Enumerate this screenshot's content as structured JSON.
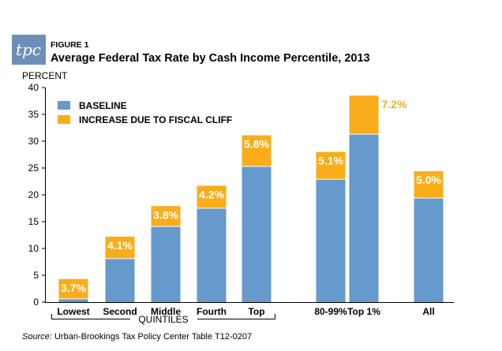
{
  "logo_text": "tpc",
  "figure_label": "FIGURE 1",
  "title": "Average Federal Tax Rate by Cash Income Percentile, 2013",
  "source_prefix": "Source:",
  "source_text": " Urban-Brookings Tax Policy Center Table T12-0207",
  "colors": {
    "baseline": "#6699CC",
    "increase": "#F9AD1B",
    "logo_bg": "#6B8FB8",
    "axis": "#000000"
  },
  "chart_data": {
    "type": "bar",
    "stacked": true,
    "ylabel": "PERCENT",
    "ylim": [
      0,
      40
    ],
    "yticks": [
      0,
      5,
      10,
      15,
      20,
      25,
      30,
      35,
      40
    ],
    "group_label": "QUINTILES",
    "categories": [
      "Lowest",
      "Second",
      "Middle",
      "Fourth",
      "Top",
      "80-99%",
      "Top 1%",
      "All"
    ],
    "series": [
      {
        "name": "BASELINE",
        "values": [
          0.6,
          8.1,
          14.1,
          17.5,
          25.3,
          22.9,
          31.3,
          19.4
        ]
      },
      {
        "name": "INCREASE DUE TO FISCAL CLIFF",
        "values": [
          3.7,
          4.1,
          3.8,
          4.2,
          5.8,
          5.1,
          7.2,
          5.0
        ]
      }
    ],
    "data_labels": [
      "3.7%",
      "4.1%",
      "3.8%",
      "4.2%",
      "5.8%",
      "5.1%",
      "7.2%",
      "5.0%"
    ],
    "legend_position": "top-left",
    "grid": false
  }
}
